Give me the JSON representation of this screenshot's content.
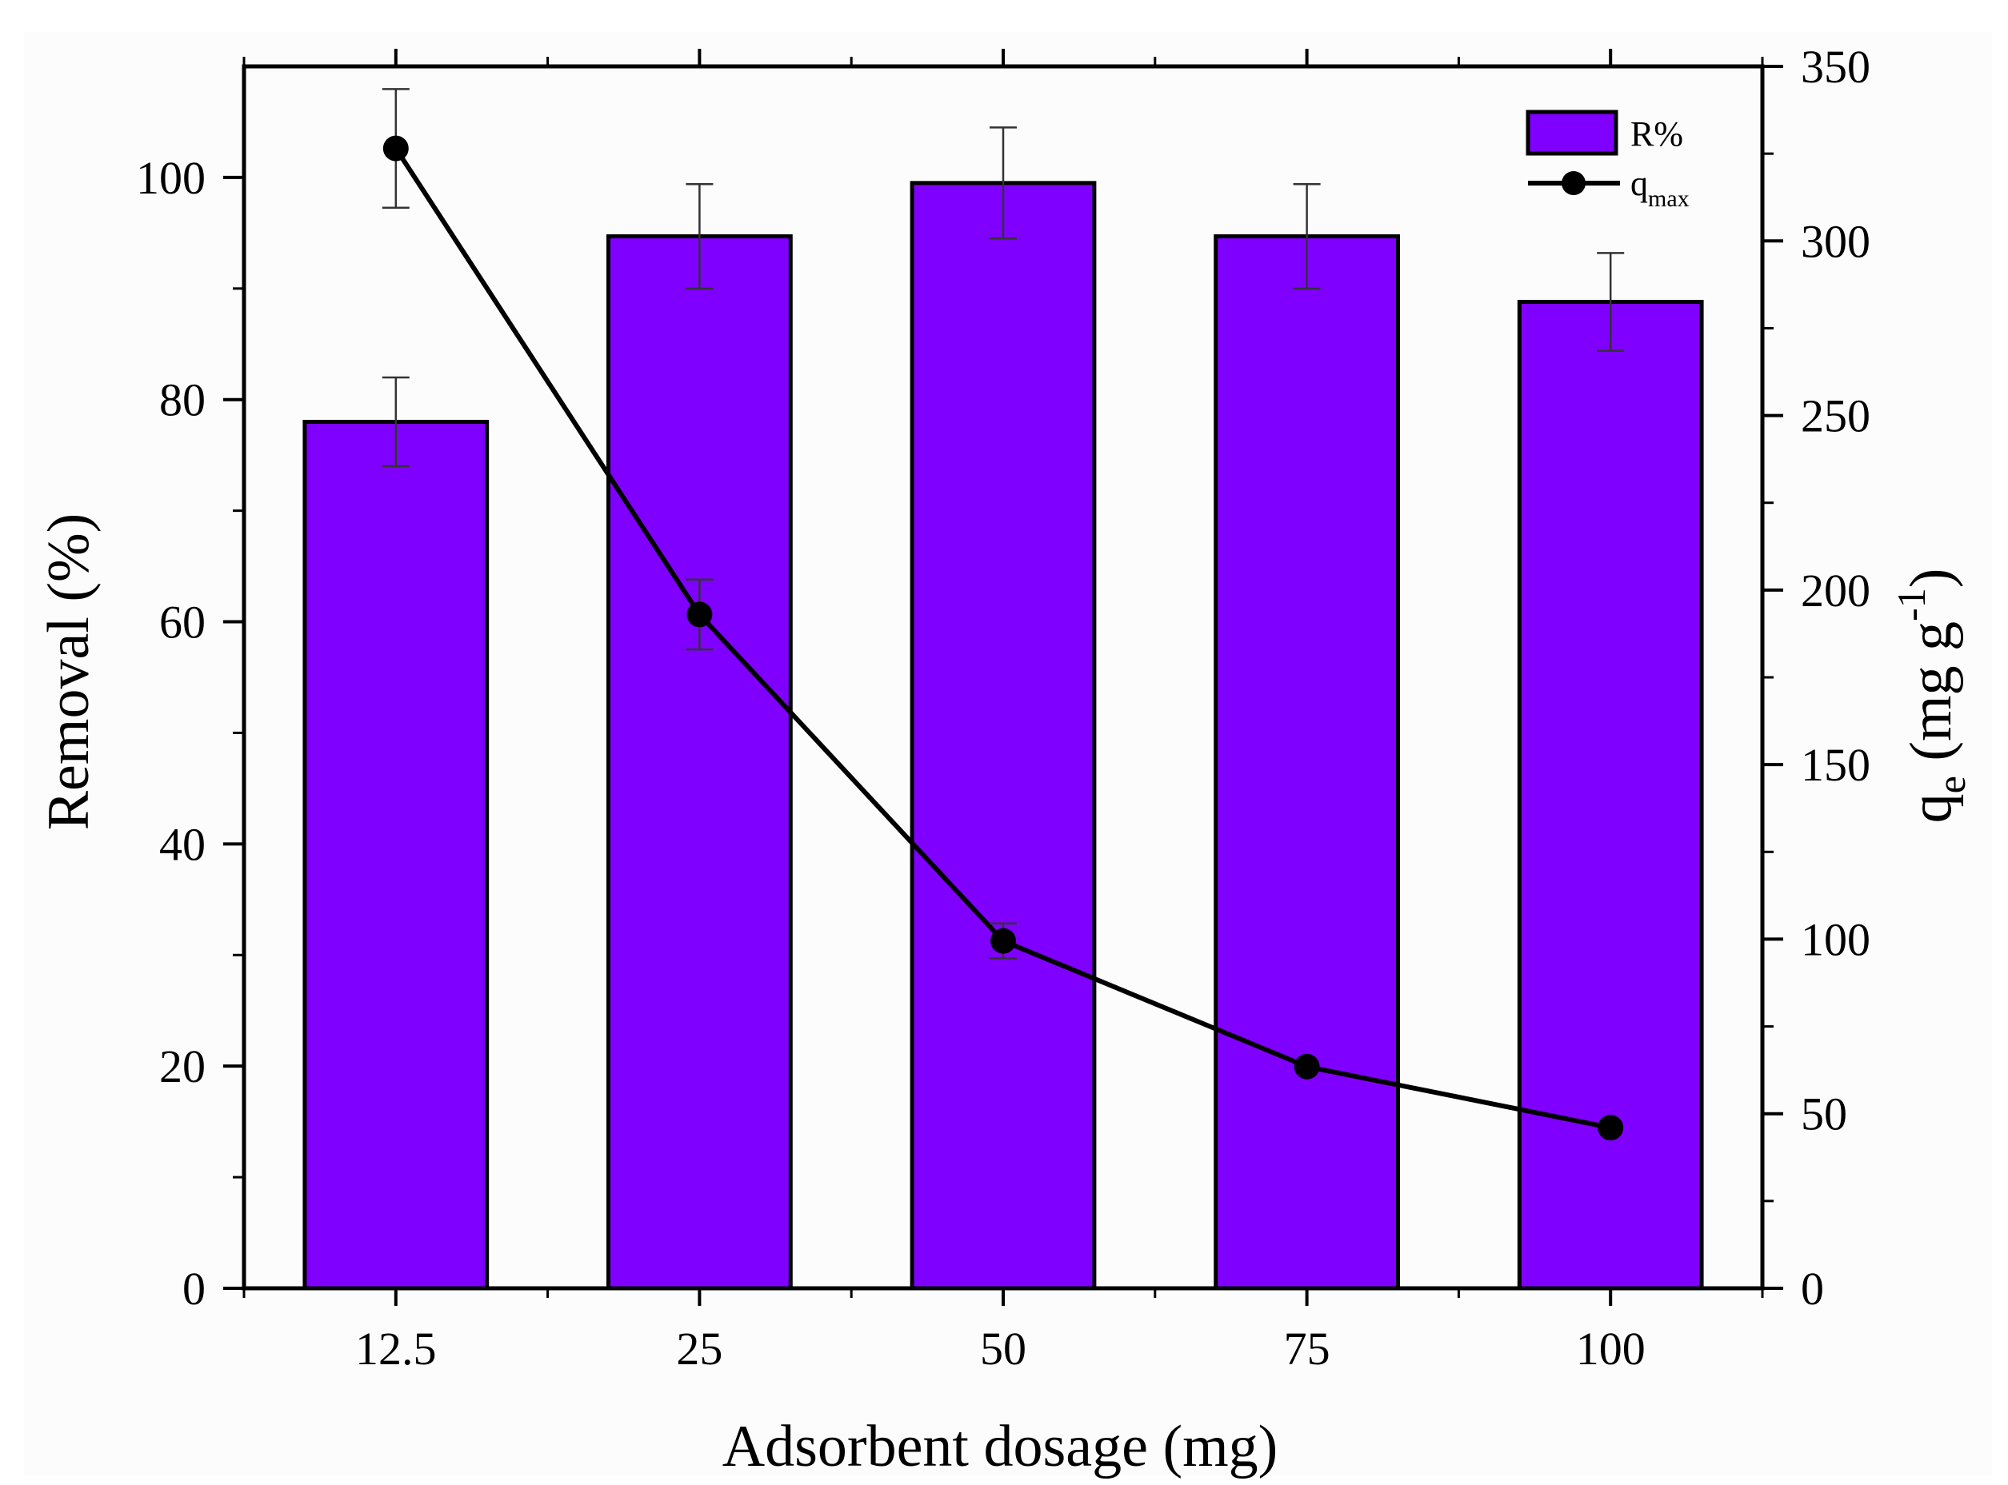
{
  "chart_data": {
    "type": "bar",
    "categories": [
      "12.5",
      "25",
      "50",
      "75",
      "100"
    ],
    "xlabel": "Adsorbent dosage (mg)",
    "ylabel": "Removal (%)",
    "y2label": {
      "base": "q",
      "sub": "e",
      "unit": " (mg g",
      "sup": "-1",
      "close": ")"
    },
    "ylim": [
      0,
      110
    ],
    "y2lim": [
      0,
      350
    ],
    "yticks": [
      0,
      20,
      40,
      60,
      80,
      100
    ],
    "y2ticks": [
      0,
      50,
      100,
      150,
      200,
      250,
      300,
      350
    ],
    "series": [
      {
        "name": "R%",
        "kind": "bar",
        "axis": "left",
        "color": "#8000ff",
        "values": [
          78,
          94.7,
          99.5,
          94.7,
          88.8
        ],
        "errors": [
          4,
          4.7,
          5,
          4.7,
          4.4
        ]
      },
      {
        "name": "q",
        "name_sub": "max",
        "kind": "line",
        "axis": "right",
        "color": "#000000",
        "values": [
          326.5,
          193,
          99.5,
          63.5,
          46
        ],
        "errors": [
          17,
          10,
          5,
          0,
          0
        ]
      }
    ],
    "legend": {
      "position": "top-right"
    }
  }
}
